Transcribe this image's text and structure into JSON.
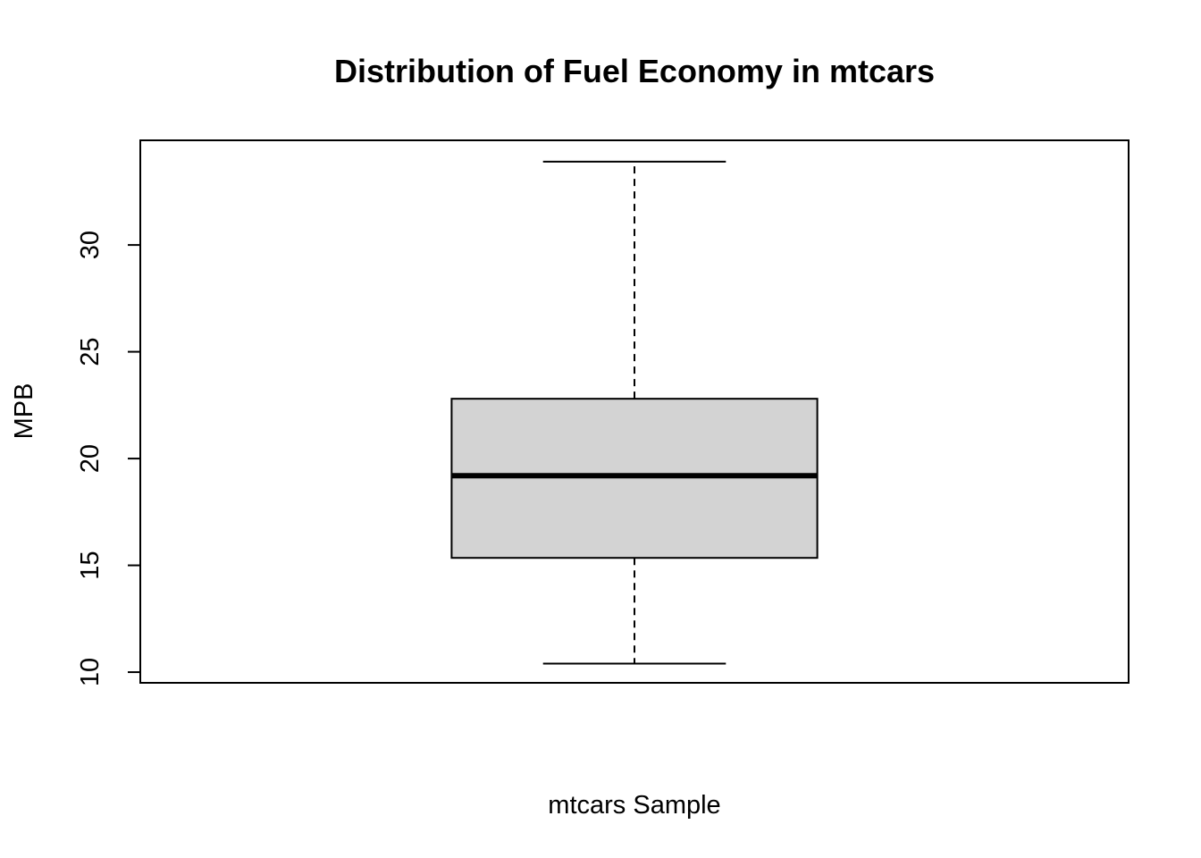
{
  "chart_data": {
    "type": "box",
    "title": "Distribution of Fuel Economy in mtcars",
    "xlabel": "mtcars Sample",
    "ylabel": "MPB",
    "ylim": [
      9.5,
      34.9
    ],
    "yticks": [
      10,
      15,
      20,
      25,
      30
    ],
    "grid": false,
    "legend": "none",
    "series": [
      {
        "min": 10.4,
        "q1": 15.35,
        "median": 19.2,
        "q3": 22.8,
        "max": 33.9
      }
    ],
    "colors": {
      "box_fill": "#d3d3d3",
      "stroke": "#000000"
    }
  }
}
